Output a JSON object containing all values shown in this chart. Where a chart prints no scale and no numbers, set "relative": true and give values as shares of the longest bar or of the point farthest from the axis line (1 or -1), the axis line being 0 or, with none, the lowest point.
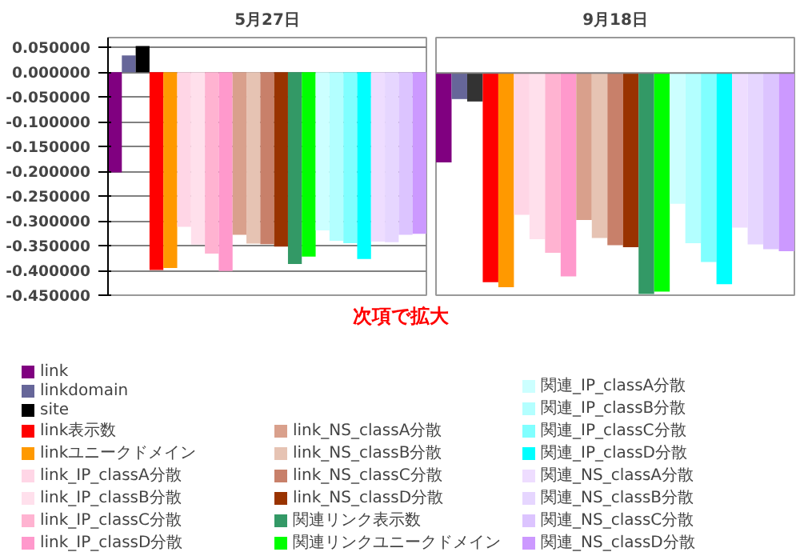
{
  "chart_data": [
    {
      "type": "bar",
      "title": "5月27日",
      "categories": [
        null
      ],
      "ylim": [
        -0.45,
        0.07
      ],
      "yticks": [
        {
          "value": -0.45,
          "label": "-0.450000"
        },
        {
          "value": -0.4,
          "label": "-0.400000"
        },
        {
          "value": -0.35,
          "label": "-0.350000"
        },
        {
          "value": -0.3,
          "label": "-0.300000"
        },
        {
          "value": -0.25,
          "label": "-0.250000"
        },
        {
          "value": -0.2,
          "label": "-0.200000"
        },
        {
          "value": -0.15,
          "label": "-0.150000"
        },
        {
          "value": -0.1,
          "label": "-0.100000"
        },
        {
          "value": -0.05,
          "label": "-0.050000"
        },
        {
          "value": 0,
          "label": "0.000000"
        },
        {
          "value": 0.05,
          "label": "0.050000"
        }
      ],
      "tick_labels": "y",
      "grid": "y",
      "legend": "bottom",
      "annotations": [
        "次項で拡大"
      ],
      "series": [
        {
          "name": "link",
          "color": "#800080",
          "values": [
            -0.202
          ]
        },
        {
          "name": "linkdomain",
          "color": "#666699",
          "values": [
            0.034
          ]
        },
        {
          "name": "site",
          "color": "#000000",
          "values": [
            0.053
          ]
        },
        {
          "name": "link表示数",
          "color": "#ff0000",
          "values": [
            -0.399
          ]
        },
        {
          "name": "linkユニークドメイン",
          "color": "#ff9900",
          "values": [
            -0.395
          ]
        },
        {
          "name": "link_IP_classA分散",
          "color": "#ffd6e6",
          "values": [
            -0.312
          ]
        },
        {
          "name": "link_IP_classB分散",
          "color": "#ffe0ec",
          "values": [
            -0.348
          ]
        },
        {
          "name": "link_IP_classC分散",
          "color": "#ffb3d1",
          "values": [
            -0.366
          ]
        },
        {
          "name": "link_IP_classD分散",
          "color": "#ff99cc",
          "values": [
            -0.401
          ]
        },
        {
          "name": "link_NS_classA分散",
          "color": "#d9a08c",
          "values": [
            -0.328
          ]
        },
        {
          "name": "link_NS_classB分散",
          "color": "#e6c3b3",
          "values": [
            -0.346
          ]
        },
        {
          "name": "link_NS_classC分散",
          "color": "#c8806a",
          "values": [
            -0.347
          ]
        },
        {
          "name": "link_NS_classD分散",
          "color": "#993300",
          "values": [
            -0.352
          ]
        },
        {
          "name": "関連リンク表示数",
          "color": "#339966",
          "values": [
            -0.387
          ]
        },
        {
          "name": "関連リンクユニークドメイン",
          "color": "#00ff00",
          "values": [
            -0.372
          ]
        },
        {
          "name": "関連_IP_classA分散",
          "color": "#ccffff",
          "values": [
            -0.319
          ]
        },
        {
          "name": "関連_IP_classB分散",
          "color": "#b3ffff",
          "values": [
            -0.34
          ]
        },
        {
          "name": "関連_IP_classC分散",
          "color": "#80ffff",
          "values": [
            -0.345
          ]
        },
        {
          "name": "関連_IP_classD分散",
          "color": "#00ffff",
          "values": [
            -0.377
          ]
        },
        {
          "name": "関連_NS_classA分散",
          "color": "#eeddff",
          "values": [
            -0.342
          ]
        },
        {
          "name": "関連_NS_classB分散",
          "color": "#e6d6ff",
          "values": [
            -0.343
          ]
        },
        {
          "name": "関連_NS_classC分散",
          "color": "#dcc4ff",
          "values": [
            -0.328
          ]
        },
        {
          "name": "関連_NS_classD分散",
          "color": "#cc99ff",
          "values": [
            -0.326
          ]
        }
      ]
    },
    {
      "type": "bar",
      "title": "9月18日",
      "categories": [
        null
      ],
      "relative": true,
      "series": [
        {
          "color": "#800080",
          "values": [
            -0.404
          ]
        },
        {
          "color": "#666699",
          "values": [
            -0.118
          ]
        },
        {
          "color": "#333333",
          "values": [
            -0.129
          ]
        },
        {
          "color": "#ff0000",
          "values": [
            -0.946
          ]
        },
        {
          "color": "#ff9900",
          "values": [
            -0.969
          ]
        },
        {
          "color": "#ffd6e6",
          "values": [
            -0.641
          ]
        },
        {
          "color": "#ffe0ec",
          "values": [
            -0.752
          ]
        },
        {
          "color": "#ffb3d1",
          "values": [
            -0.813
          ]
        },
        {
          "color": "#ff99cc",
          "values": [
            -0.92
          ]
        },
        {
          "color": "#d9a08c",
          "values": [
            -0.665
          ]
        },
        {
          "color": "#e6c3b3",
          "values": [
            -0.746
          ]
        },
        {
          "color": "#c8806a",
          "values": [
            -0.779
          ]
        },
        {
          "color": "#993300",
          "values": [
            -0.788
          ]
        },
        {
          "color": "#339966",
          "values": [
            -1
          ]
        },
        {
          "color": "#00ff00",
          "values": [
            -0.989
          ]
        },
        {
          "color": "#ccffff",
          "values": [
            -0.592
          ]
        },
        {
          "color": "#b3ffff",
          "values": [
            -0.77
          ]
        },
        {
          "color": "#80ffff",
          "values": [
            -0.855
          ]
        },
        {
          "color": "#00ffff",
          "values": [
            -0.955
          ]
        },
        {
          "color": "#eeddff",
          "values": [
            -0.699
          ]
        },
        {
          "color": "#e6d6ff",
          "values": [
            -0.775
          ]
        },
        {
          "color": "#dcc4ff",
          "values": [
            -0.797
          ]
        },
        {
          "color": "#cc99ff",
          "values": [
            -0.806
          ]
        }
      ]
    }
  ]
}
